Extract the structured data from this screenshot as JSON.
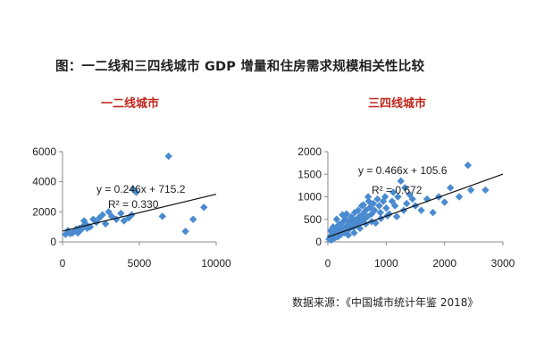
{
  "title": "图：一二线和三四线城市 GDP 增量和住房需求规模相关性比较",
  "source": "数据来源：《中国城市统计年鉴 2018》",
  "colors": {
    "marker": "#4a8bd0",
    "trendline": "#111111",
    "subtitle": "#c0281e"
  },
  "chart_data": [
    {
      "type": "scatter",
      "title": "一二线城市",
      "xlim": [
        0,
        10000
      ],
      "ylim": [
        0,
        6000
      ],
      "xticks": [
        "0",
        "5000",
        "10000"
      ],
      "yticks": [
        "0",
        "2000",
        "4000",
        "6000"
      ],
      "grid": false,
      "legend": "none",
      "equation": "y = 0.246x + 715.2",
      "r_squared": "R² = 0.330",
      "trendline": {
        "slope": 0.246,
        "intercept": 715.2
      },
      "points": [
        [
          200,
          500
        ],
        [
          350,
          750
        ],
        [
          500,
          550
        ],
        [
          650,
          600
        ],
        [
          800,
          700
        ],
        [
          900,
          850
        ],
        [
          1000,
          600
        ],
        [
          1100,
          900
        ],
        [
          1200,
          800
        ],
        [
          1300,
          1000
        ],
        [
          1400,
          1400
        ],
        [
          1500,
          1200
        ],
        [
          1600,
          900
        ],
        [
          1800,
          1000
        ],
        [
          2000,
          1500
        ],
        [
          2200,
          1300
        ],
        [
          2400,
          1600
        ],
        [
          2600,
          1800
        ],
        [
          2800,
          1200
        ],
        [
          3000,
          2000
        ],
        [
          3200,
          1700
        ],
        [
          3500,
          1500
        ],
        [
          3800,
          1900
        ],
        [
          4000,
          1400
        ],
        [
          4300,
          1600
        ],
        [
          4500,
          1800
        ],
        [
          4800,
          3300
        ],
        [
          4600,
          3500
        ],
        [
          6500,
          1700
        ],
        [
          6900,
          5700
        ],
        [
          8000,
          700
        ],
        [
          8500,
          1500
        ],
        [
          9200,
          2300
        ]
      ]
    },
    {
      "type": "scatter",
      "title": "三四线城市",
      "xlim": [
        0,
        3000
      ],
      "ylim": [
        0,
        2000
      ],
      "xticks": [
        "0",
        "1000",
        "2000",
        "3000"
      ],
      "yticks": [
        "0",
        "500",
        "1000",
        "1500",
        "2000"
      ],
      "grid": false,
      "legend": "none",
      "equation": "y = 0.466x + 105.6",
      "r_squared": "R² = 0.672",
      "trendline": {
        "slope": 0.466,
        "intercept": 105.6
      },
      "points": [
        [
          20,
          60
        ],
        [
          40,
          120
        ],
        [
          60,
          40
        ],
        [
          80,
          200
        ],
        [
          100,
          150
        ],
        [
          120,
          90
        ],
        [
          130,
          300
        ],
        [
          150,
          230
        ],
        [
          170,
          110
        ],
        [
          190,
          380
        ],
        [
          200,
          260
        ],
        [
          220,
          160
        ],
        [
          240,
          420
        ],
        [
          260,
          300
        ],
        [
          280,
          200
        ],
        [
          300,
          500
        ],
        [
          320,
          350
        ],
        [
          340,
          250
        ],
        [
          360,
          450
        ],
        [
          380,
          300
        ],
        [
          400,
          550
        ],
        [
          420,
          400
        ],
        [
          440,
          320
        ],
        [
          460,
          650
        ],
        [
          480,
          480
        ],
        [
          500,
          380
        ],
        [
          520,
          700
        ],
        [
          540,
          560
        ],
        [
          560,
          430
        ],
        [
          580,
          800
        ],
        [
          600,
          620
        ],
        [
          620,
          500
        ],
        [
          650,
          700
        ],
        [
          680,
          560
        ],
        [
          700,
          900
        ],
        [
          720,
          760
        ],
        [
          750,
          620
        ],
        [
          780,
          850
        ],
        [
          800,
          700
        ],
        [
          850,
          950
        ],
        [
          880,
          800
        ],
        [
          900,
          650
        ],
        [
          950,
          900
        ],
        [
          980,
          1000
        ],
        [
          1000,
          750
        ],
        [
          1050,
          620
        ],
        [
          1100,
          900
        ],
        [
          1150,
          800
        ],
        [
          1200,
          1000
        ],
        [
          1250,
          1350
        ],
        [
          1300,
          700
        ],
        [
          1350,
          850
        ],
        [
          1400,
          1050
        ],
        [
          1450,
          950
        ],
        [
          1500,
          800
        ],
        [
          1600,
          700
        ],
        [
          1700,
          950
        ],
        [
          1800,
          650
        ],
        [
          1900,
          1000
        ],
        [
          2000,
          880
        ],
        [
          2100,
          1200
        ],
        [
          2250,
          1000
        ],
        [
          2400,
          1700
        ],
        [
          2450,
          1150
        ],
        [
          2700,
          1150
        ],
        [
          150,
          500
        ],
        [
          250,
          600
        ],
        [
          350,
          150
        ],
        [
          450,
          200
        ],
        [
          550,
          300
        ],
        [
          650,
          400
        ],
        [
          750,
          450
        ],
        [
          50,
          250
        ],
        [
          90,
          330
        ],
        [
          320,
          620
        ],
        [
          430,
          520
        ],
        [
          610,
          820
        ],
        [
          690,
          1000
        ],
        [
          820,
          420
        ],
        [
          910,
          520
        ],
        [
          1020,
          580
        ],
        [
          1120,
          1100
        ],
        [
          1180,
          560
        ],
        [
          1320,
          1200
        ]
      ]
    }
  ]
}
